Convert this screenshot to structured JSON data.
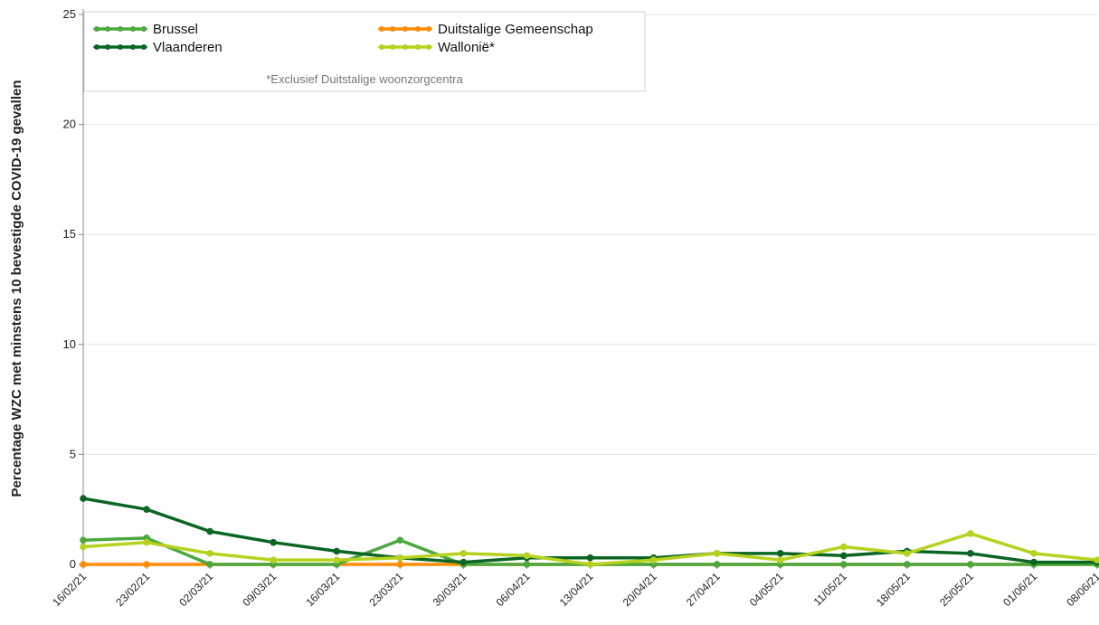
{
  "chart_data": {
    "type": "line",
    "ylabel": "Percentage WZC met minstens 10 bevestigde COVID-19 gevallen",
    "xlabel": "",
    "ylim": [
      0,
      25
    ],
    "yticks": [
      "0",
      "5",
      "10",
      "15",
      "20",
      "25"
    ],
    "grid": true,
    "legend_position": "top-left",
    "legend_note": "*Exclusief Duitstalige woonzorgcentra",
    "x": [
      "16/02/21",
      "23/02/21",
      "02/03/21",
      "09/03/21",
      "16/03/21",
      "23/03/21",
      "30/03/21",
      "06/04/21",
      "13/04/21",
      "20/04/21",
      "27/04/21",
      "04/05/21",
      "11/05/21",
      "18/05/21",
      "25/05/21",
      "01/06/21",
      "08/06/21"
    ],
    "series": [
      {
        "name": "Brussel",
        "color": "#4aa83c",
        "values": [
          1.1,
          1.2,
          0,
          0,
          0,
          1.1,
          0,
          0,
          0,
          0,
          0,
          0,
          0,
          0,
          0,
          0,
          0
        ]
      },
      {
        "name": "Duitstalige Gemeenschap",
        "color": "#ff8c00",
        "values": [
          0,
          0,
          0,
          0,
          0,
          0,
          0,
          0,
          0,
          0,
          0,
          0,
          0,
          0,
          0,
          0,
          0
        ]
      },
      {
        "name": "Vlaanderen",
        "color": "#0b6623",
        "values": [
          3.0,
          2.5,
          1.5,
          1.0,
          0.6,
          0.3,
          0.1,
          0.3,
          0.3,
          0.3,
          0.5,
          0.5,
          0.4,
          0.6,
          0.5,
          0.1,
          0.1
        ]
      },
      {
        "name": "Wallonië*",
        "color": "#b7d21e",
        "values": [
          0.8,
          1.0,
          0.5,
          0.2,
          0.2,
          0.3,
          0.5,
          0.4,
          0.0,
          0.2,
          0.5,
          0.2,
          0.8,
          0.5,
          1.4,
          0.5,
          0.2
        ]
      }
    ]
  }
}
